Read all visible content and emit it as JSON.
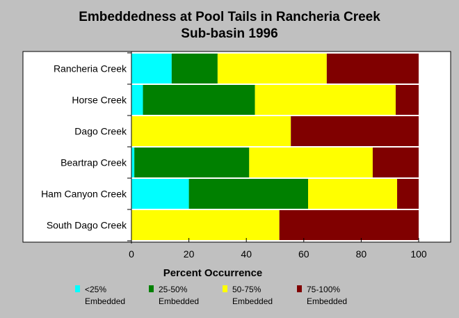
{
  "chart_data": {
    "type": "bar",
    "orientation": "horizontal",
    "stacked": true,
    "title_lines": [
      "Embeddedness at Pool Tails in Rancheria Creek",
      "Sub-basin 1996"
    ],
    "xlabel": "Percent Occurrence",
    "ylabel": "",
    "xlim": [
      0,
      100
    ],
    "x_ticks": [
      "0",
      "20",
      "40",
      "60",
      "80",
      "100"
    ],
    "grid": false,
    "legend_position": "bottom",
    "categories": [
      "Rancheria Creek",
      "Horse Creek",
      "Dago Creek",
      "Beartrap Creek",
      "Ham Canyon Creek",
      "South Dago Creek"
    ],
    "series": [
      {
        "name_line1": "<25%",
        "name_line2": "Embedded",
        "color": "#00ffff",
        "values": [
          14,
          4,
          0,
          1,
          20,
          0
        ]
      },
      {
        "name_line1": "25-50%",
        "name_line2": "Embedded",
        "color": "#008000",
        "values": [
          16,
          39,
          0,
          40,
          41.5,
          0
        ]
      },
      {
        "name_line1": "50-75%",
        "name_line2": "Embedded",
        "color": "#ffff00",
        "values": [
          38,
          49,
          55.5,
          43,
          31,
          51.5
        ]
      },
      {
        "name_line1": "75-100%",
        "name_line2": "Embedded",
        "color": "#800000",
        "values": [
          32,
          8,
          44.5,
          16,
          7.5,
          48.5
        ]
      }
    ]
  }
}
